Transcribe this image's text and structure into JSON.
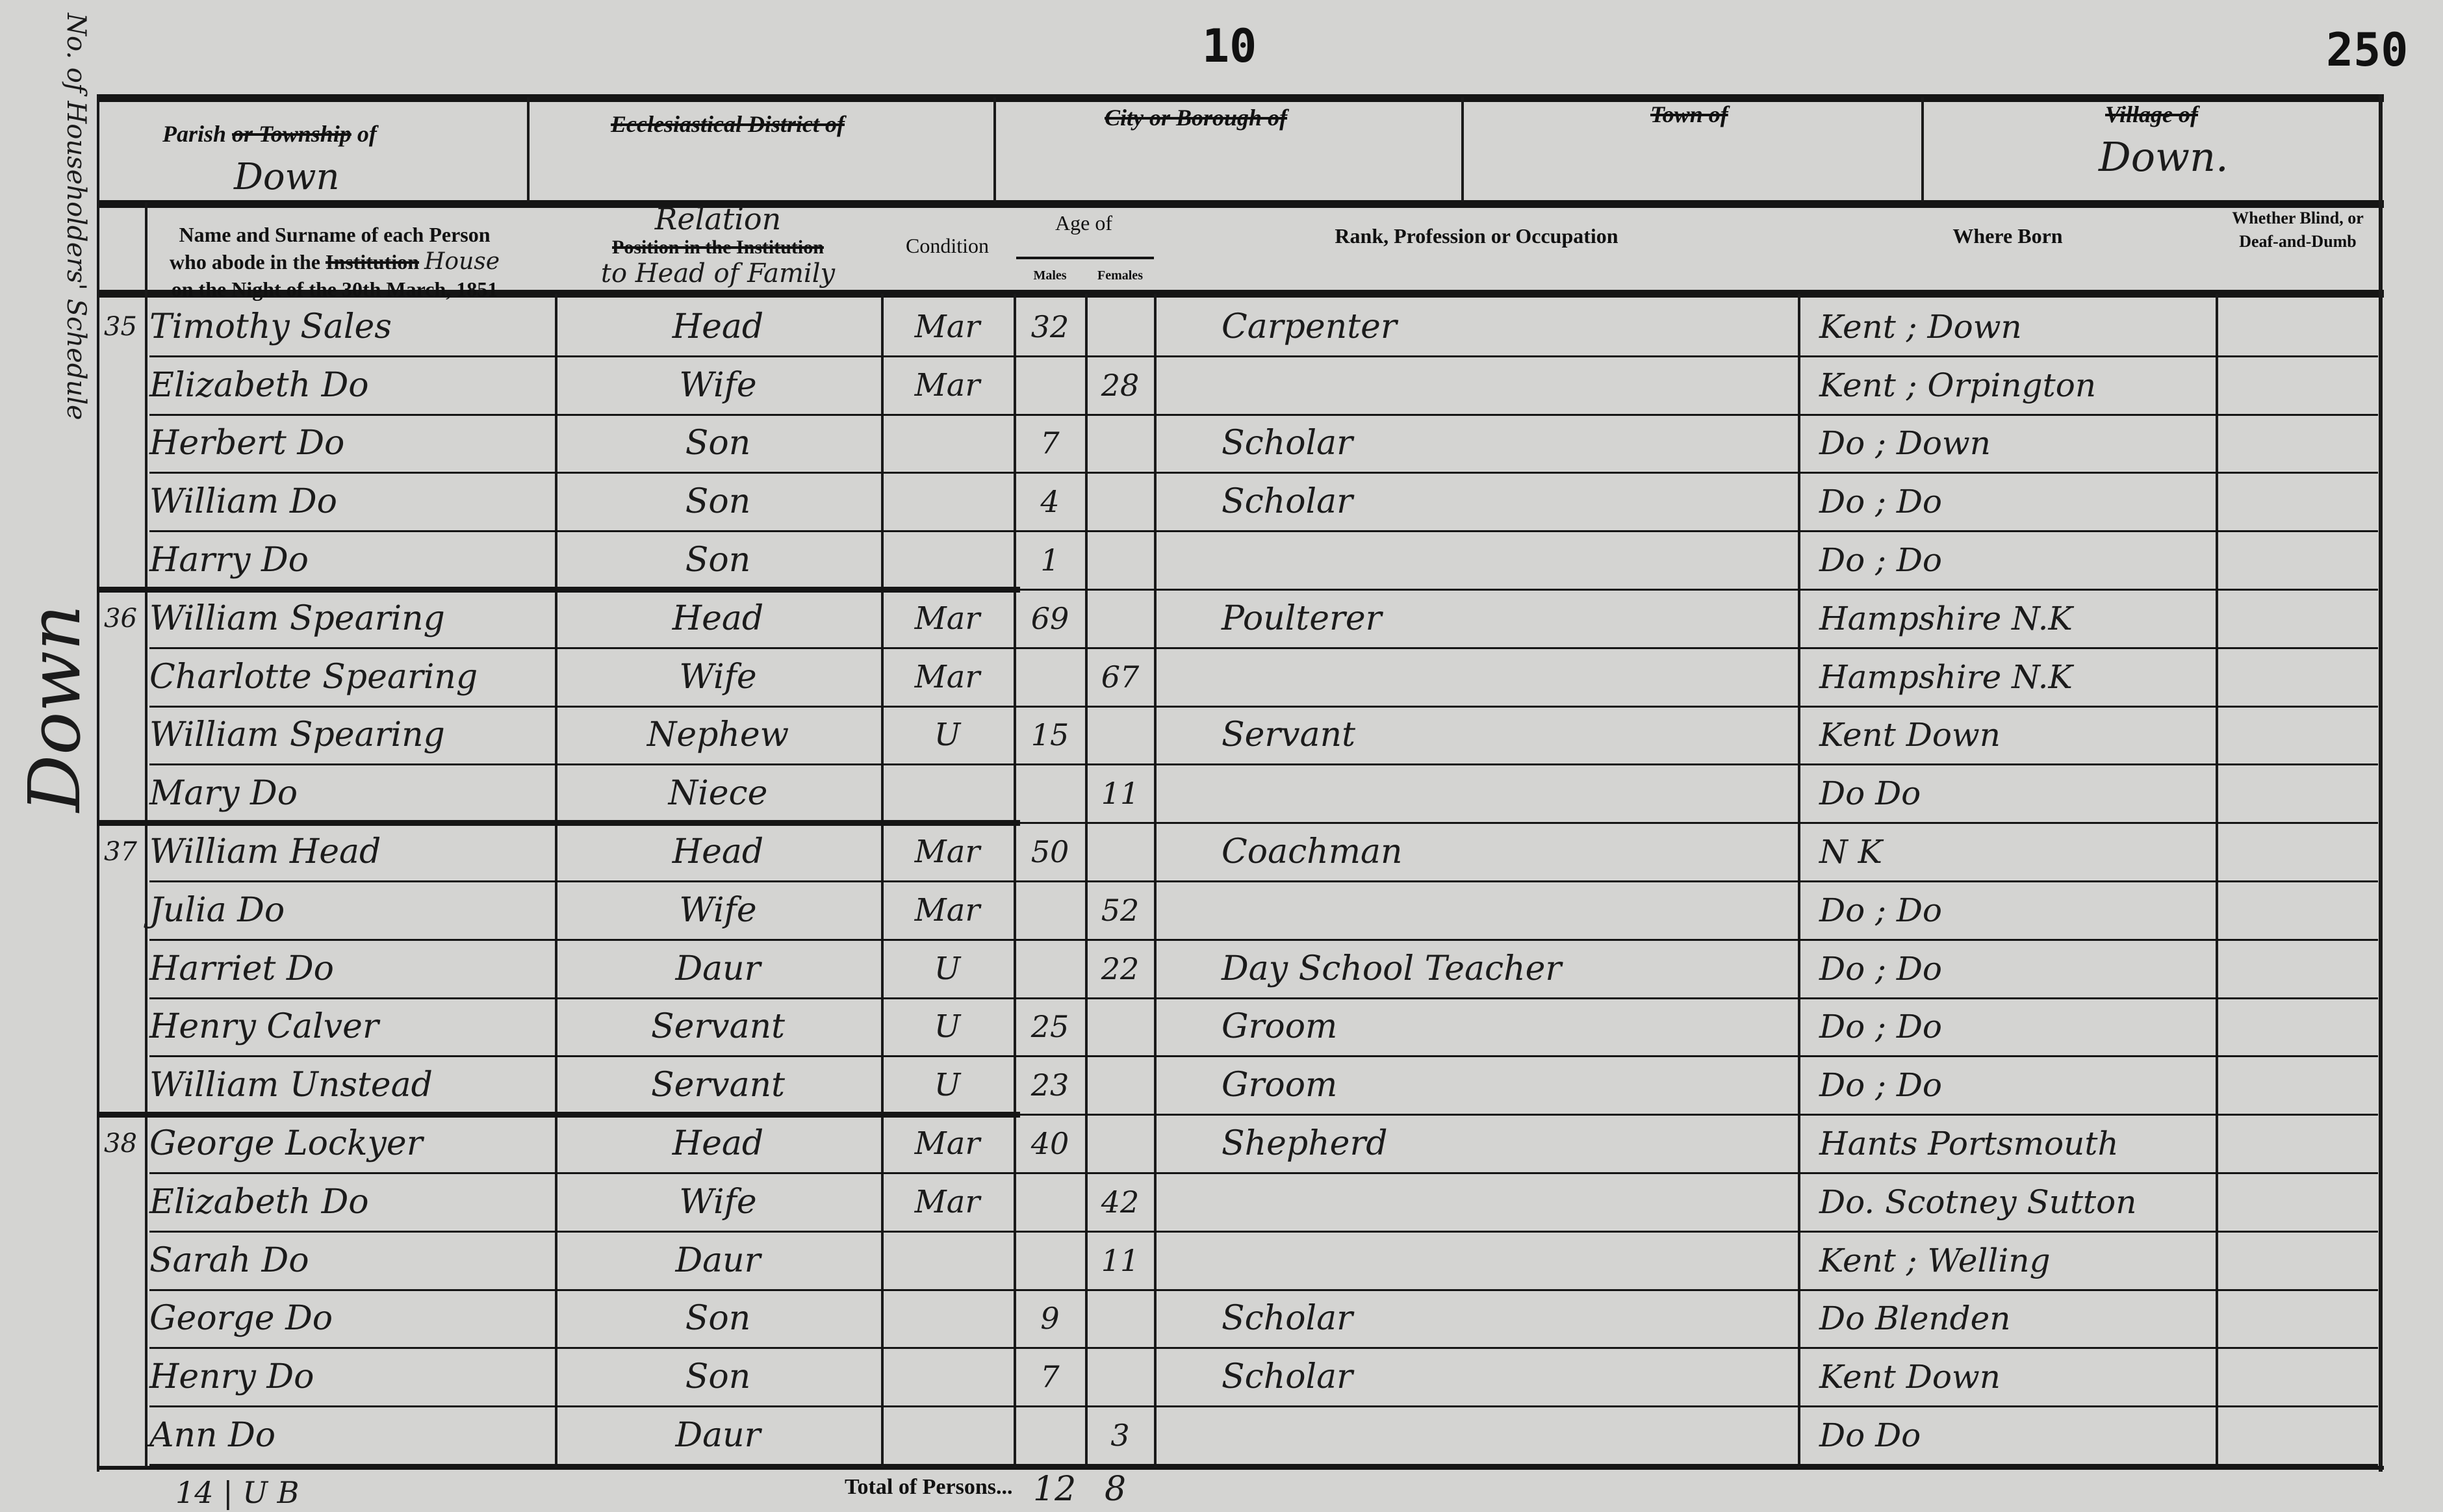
{
  "page": {
    "folio": "10",
    "page_number": "250"
  },
  "margin": {
    "schedule_note": "No. of Householders' Schedule",
    "place": "Down"
  },
  "place_header": {
    "parish_label_kept": "Parish",
    "parish_label_struck": "or Township",
    "parish_label_end": "of",
    "parish_value": "Down",
    "ecclesiastical_label": "Ecclesiastical District of",
    "ecclesiastical_value": "",
    "city_label": "City or Borough of",
    "city_value": "",
    "town_label": "Town of",
    "town_value": "",
    "village_label": "Village of",
    "village_value": "Down."
  },
  "columns": {
    "name_line1": "Name and Surname of each Person",
    "name_line2_a": "who abode in the",
    "name_line2_struck": "Institution",
    "name_line2_hand": "House",
    "name_line3": "on the Night of the 30th March, 1851",
    "relation_hand_top": "Relation",
    "relation_struck": "Position in the Institution",
    "relation_hand_bottom": "to Head of Family",
    "condition": "Condition",
    "age": "Age of",
    "males": "Males",
    "females": "Females",
    "occupation": "Rank, Profession or Occupation",
    "where_born": "Where Born",
    "blind": "Whether Blind, or Deaf-and-Dumb"
  },
  "rows": [
    {
      "schedule": "35",
      "name": "Timothy Sales",
      "relation": "Head",
      "condition": "Mar",
      "male_age": "32",
      "female_age": "",
      "occupation": "Carpenter",
      "born": "Kent ; Down"
    },
    {
      "schedule": "",
      "name": "Elizabeth Do",
      "relation": "Wife",
      "condition": "Mar",
      "male_age": "",
      "female_age": "28",
      "occupation": "",
      "born": "Kent ; Orpington"
    },
    {
      "schedule": "",
      "name": "Herbert Do",
      "relation": "Son",
      "condition": "",
      "male_age": "7",
      "female_age": "",
      "occupation": "Scholar",
      "born": "Do ; Down"
    },
    {
      "schedule": "",
      "name": "William Do",
      "relation": "Son",
      "condition": "",
      "male_age": "4",
      "female_age": "",
      "occupation": "Scholar",
      "born": "Do ; Do"
    },
    {
      "schedule": "",
      "name": "Harry Do",
      "relation": "Son",
      "condition": "",
      "male_age": "1",
      "female_age": "",
      "occupation": "",
      "born": "Do ; Do"
    },
    {
      "schedule": "36",
      "name": "William Spearing",
      "relation": "Head",
      "condition": "Mar",
      "male_age": "69",
      "female_age": "",
      "occupation": "Poulterer",
      "born": "Hampshire N.K"
    },
    {
      "schedule": "",
      "name": "Charlotte Spearing",
      "relation": "Wife",
      "condition": "Mar",
      "male_age": "",
      "female_age": "67",
      "occupation": "",
      "born": "Hampshire N.K"
    },
    {
      "schedule": "",
      "name": "William Spearing",
      "relation": "Nephew",
      "condition": "U",
      "male_age": "15",
      "female_age": "",
      "occupation": "Servant",
      "born": "Kent   Down"
    },
    {
      "schedule": "",
      "name": "Mary Do",
      "relation": "Niece",
      "condition": "",
      "male_age": "",
      "female_age": "11",
      "occupation": "",
      "born": "Do   Do"
    },
    {
      "schedule": "37",
      "name": "William Head",
      "relation": "Head",
      "condition": "Mar",
      "male_age": "50",
      "female_age": "",
      "occupation": "Coachman",
      "born": "N   K"
    },
    {
      "schedule": "",
      "name": "Julia Do",
      "relation": "Wife",
      "condition": "Mar",
      "male_age": "",
      "female_age": "52",
      "occupation": "",
      "born": "Do ; Do"
    },
    {
      "schedule": "",
      "name": "Harriet Do",
      "relation": "Daur",
      "condition": "U",
      "male_age": "",
      "female_age": "22",
      "occupation": "Day School Teacher",
      "born": "Do ; Do"
    },
    {
      "schedule": "",
      "name": "Henry Calver",
      "relation": "Servant",
      "condition": "U",
      "male_age": "25",
      "female_age": "",
      "occupation": "Groom",
      "born": "Do ; Do"
    },
    {
      "schedule": "",
      "name": "William Unstead",
      "relation": "Servant",
      "condition": "U",
      "male_age": "23",
      "female_age": "",
      "occupation": "Groom",
      "born": "Do ; Do"
    },
    {
      "schedule": "38",
      "name": "George Lockyer",
      "relation": "Head",
      "condition": "Mar",
      "male_age": "40",
      "female_age": "",
      "occupation": "Shepherd",
      "born": "Hants Portsmouth"
    },
    {
      "schedule": "",
      "name": "Elizabeth Do",
      "relation": "Wife",
      "condition": "Mar",
      "male_age": "",
      "female_age": "42",
      "occupation": "",
      "born": "Do. Scotney Sutton"
    },
    {
      "schedule": "",
      "name": "Sarah Do",
      "relation": "Daur",
      "condition": "",
      "male_age": "",
      "female_age": "11",
      "occupation": "",
      "born": "Kent ; Welling"
    },
    {
      "schedule": "",
      "name": "George Do",
      "relation": "Son",
      "condition": "",
      "male_age": "9",
      "female_age": "",
      "occupation": "Scholar",
      "born": "Do Blenden"
    },
    {
      "schedule": "",
      "name": "Henry Do",
      "relation": "Son",
      "condition": "",
      "male_age": "7",
      "female_age": "",
      "occupation": "Scholar",
      "born": "Kent Down"
    },
    {
      "schedule": "",
      "name": "Ann Do",
      "relation": "Daur",
      "condition": "",
      "male_age": "",
      "female_age": "3",
      "occupation": "",
      "born": "Do   Do"
    }
  ],
  "household_ends_after_rows": [
    5,
    9,
    14
  ],
  "totals": {
    "label": "Total of Persons...",
    "males": "12",
    "females": "8",
    "tally": "14 | U   B"
  }
}
